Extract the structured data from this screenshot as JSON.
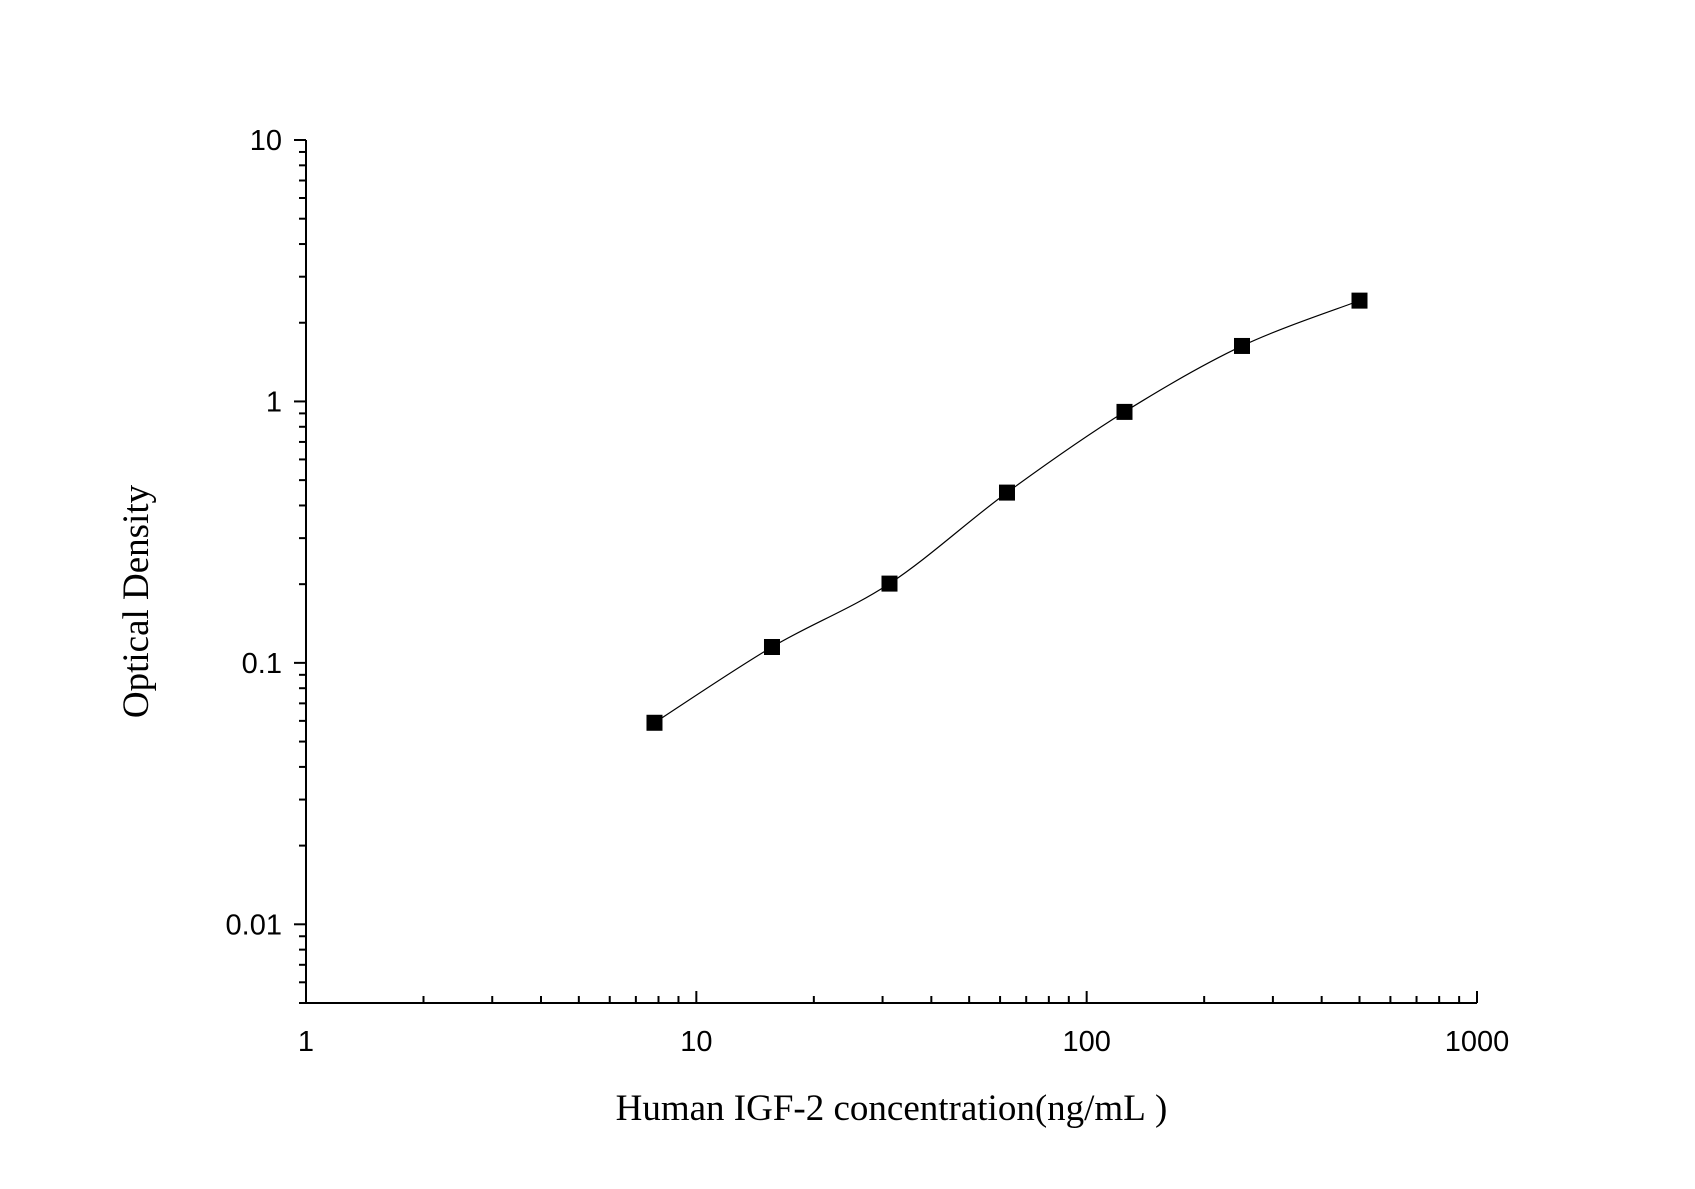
{
  "chart_data": {
    "type": "scatter",
    "title": "",
    "xlabel": "Human IGF-2 concentration(ng/mL )",
    "ylabel": "Optical Density",
    "x_scale": "log",
    "y_scale": "log",
    "xlim": [
      1,
      1000
    ],
    "ylim": [
      0.005,
      10
    ],
    "x_ticks": [
      "1",
      "10",
      "100",
      "1000"
    ],
    "y_ticks": [
      "0.01",
      "0.1",
      "1",
      "10"
    ],
    "grid": false,
    "legend": "none",
    "marker_color": "#000000",
    "curve_color": "#000000",
    "series": [
      {
        "points": [
          {
            "x": 7.8125,
            "y": 0.059
          },
          {
            "x": 15.625,
            "y": 0.115
          },
          {
            "x": 31.25,
            "y": 0.201
          },
          {
            "x": 62.5,
            "y": 0.448
          },
          {
            "x": 125,
            "y": 0.912
          },
          {
            "x": 250,
            "y": 1.63
          },
          {
            "x": 500,
            "y": 2.43
          }
        ],
        "fit": "four-parameter logistic curve"
      }
    ]
  }
}
